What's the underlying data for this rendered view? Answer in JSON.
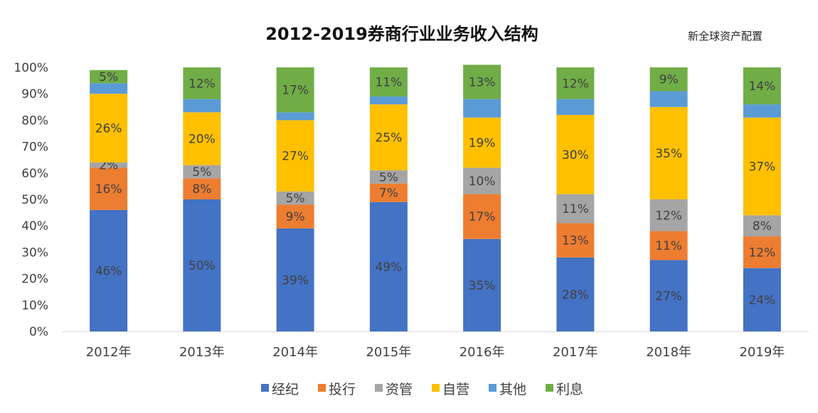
{
  "title": "2012-2019券商行业业务收入结构",
  "watermark": "新全球资产配置",
  "chart_data": {
    "type": "bar",
    "stacked": true,
    "categories": [
      "2012年",
      "2013年",
      "2014年",
      "2015年",
      "2016年",
      "2017年",
      "2018年",
      "2019年"
    ],
    "y_ticks": [
      "0%",
      "10%",
      "20%",
      "30%",
      "40%",
      "50%",
      "60%",
      "70%",
      "80%",
      "90%",
      "100%"
    ],
    "ylim": [
      0,
      100
    ],
    "legend_position": "bottom",
    "grid": false,
    "series": [
      {
        "name": "经纪",
        "color": "#4472C4",
        "values": [
          46,
          50,
          39,
          49,
          35,
          28,
          27,
          24
        ],
        "labels": [
          "46%",
          "50%",
          "39%",
          "49%",
          "35%",
          "28%",
          "27%",
          "24%"
        ]
      },
      {
        "name": "投行",
        "color": "#ED7D31",
        "values": [
          16,
          8,
          9,
          7,
          17,
          13,
          11,
          12
        ],
        "labels": [
          "16%",
          "8%",
          "9%",
          "7%",
          "17%",
          "13%",
          "11%",
          "12%"
        ]
      },
      {
        "name": "资管",
        "color": "#A5A5A5",
        "values": [
          2,
          5,
          5,
          5,
          10,
          11,
          12,
          8
        ],
        "labels": [
          "2%",
          "5%",
          "5%",
          "5%",
          "10%",
          "11%",
          "12%",
          "8%"
        ]
      },
      {
        "name": "自营",
        "color": "#FFC000",
        "values": [
          26,
          20,
          27,
          25,
          19,
          30,
          35,
          37
        ],
        "labels": [
          "26%",
          "20%",
          "27%",
          "25%",
          "19%",
          "30%",
          "35%",
          "37%"
        ]
      },
      {
        "name": "其他",
        "color": "#5B9BD5",
        "values": [
          4,
          5,
          3,
          3,
          7,
          6,
          6,
          5
        ],
        "labels": [
          "",
          "",
          "",
          "",
          "",
          "",
          "",
          ""
        ]
      },
      {
        "name": "利息",
        "color": "#70AD47",
        "values": [
          5,
          12,
          17,
          11,
          13,
          12,
          9,
          14
        ],
        "labels": [
          "5%",
          "12%",
          "17%",
          "11%",
          "13%",
          "12%",
          "9%",
          "14%"
        ]
      }
    ]
  }
}
